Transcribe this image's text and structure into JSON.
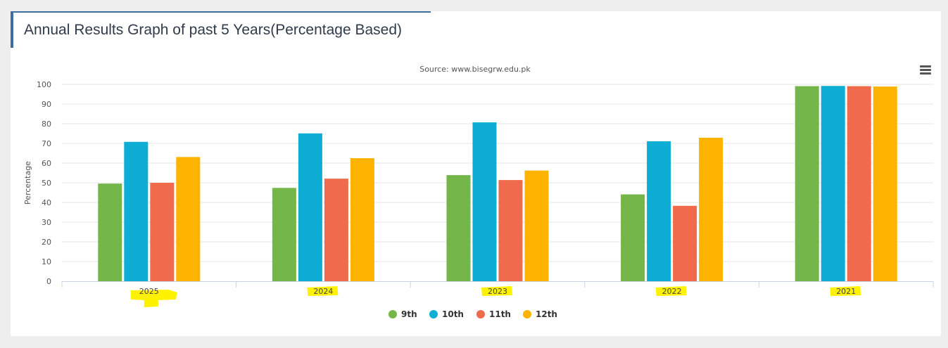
{
  "header": {
    "title_before": "Annual Results Graph of ",
    "title_highlight": "past 5 Years",
    "title_after": "(Percentage Based)"
  },
  "chart_data": {
    "type": "bar",
    "subtitle": "Source: www.bisegrw.edu.pk",
    "ylabel": "Percentage",
    "ylim": [
      0,
      100
    ],
    "yticks": [
      0,
      10,
      20,
      30,
      40,
      50,
      60,
      70,
      80,
      90,
      100
    ],
    "categories": [
      "2025",
      "2024",
      "2023",
      "2022",
      "2021"
    ],
    "series": [
      {
        "name": "9th",
        "color": "#74b649",
        "values": [
          49.6,
          47.4,
          53.9,
          44.1,
          99.1
        ]
      },
      {
        "name": "10th",
        "color": "#0eaed4",
        "values": [
          70.8,
          75.1,
          80.7,
          71.1,
          99.2
        ]
      },
      {
        "name": "11th",
        "color": "#ef6b4b",
        "values": [
          50.0,
          52.1,
          51.4,
          38.3,
          99.1
        ]
      },
      {
        "name": "12th",
        "color": "#fdb300",
        "values": [
          63.1,
          62.5,
          56.2,
          72.9,
          98.9
        ]
      }
    ],
    "grid": true,
    "legend_position": "bottom-center",
    "highlighted_categories": [
      "2025",
      "2024",
      "2023",
      "2022",
      "2021"
    ]
  },
  "colors": {
    "accent": "#3c6ea0",
    "highlight": "#fff200"
  },
  "icons": {
    "menu": "hamburger-menu-icon"
  }
}
